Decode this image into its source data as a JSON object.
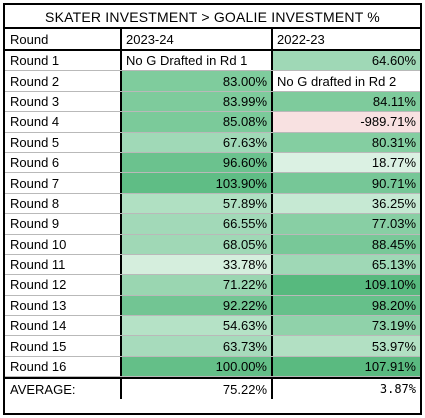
{
  "title": "SKATER INVESTMENT > GOALIE INVESTMENT %",
  "columns": [
    "Round",
    "2023-24",
    "2022-23"
  ],
  "rows": [
    {
      "round": "Round 1",
      "v2324": "No G Drafted in Rd 1",
      "c2324": "#ffffff",
      "v2223": "64.60%",
      "c2223": "#9fd8b6"
    },
    {
      "round": "Round 2",
      "v2324": "83.00%",
      "c2324": "#7fcc9d",
      "v2223": "No G drafted in Rd 2",
      "c2223": "#ffffff"
    },
    {
      "round": "Round 3",
      "v2324": "83.99%",
      "c2324": "#7ecb9c",
      "v2223": "84.11%",
      "c2223": "#7ecb9c"
    },
    {
      "round": "Round 4",
      "v2324": "85.08%",
      "c2324": "#7bca9a",
      "v2223": "-989.71%",
      "c2223": "#f8e1e1"
    },
    {
      "round": "Round 5",
      "v2324": "67.63%",
      "c2324": "#a0d9b7",
      "v2223": "80.31%",
      "c2223": "#84cea1"
    },
    {
      "round": "Round 6",
      "v2324": "96.60%",
      "c2324": "#6bc28e",
      "v2223": "18.77%",
      "c2223": "#dbf1e3"
    },
    {
      "round": "Round 7",
      "v2324": "103.90%",
      "c2324": "#5fbd85",
      "v2223": "90.71%",
      "c2223": "#76c797"
    },
    {
      "round": "Round 8",
      "v2324": "57.89%",
      "c2324": "#b0e0c2",
      "v2223": "36.25%",
      "c2223": "#c6e9d3"
    },
    {
      "round": "Round 9",
      "v2324": "66.55%",
      "c2324": "#a2d9b8",
      "v2223": "77.03%",
      "c2223": "#88cfa4"
    },
    {
      "round": "Round 10",
      "v2324": "68.05%",
      "c2324": "#a0d8b6",
      "v2223": "88.45%",
      "c2223": "#78c898"
    },
    {
      "round": "Round 11",
      "v2324": "33.78%",
      "c2324": "#d5eedd",
      "v2223": "65.13%",
      "c2223": "#9fd8b6"
    },
    {
      "round": "Round 12",
      "v2324": "71.22%",
      "c2324": "#9ad6b1",
      "v2223": "109.10%",
      "c2223": "#57b97e"
    },
    {
      "round": "Round 13",
      "v2324": "92.22%",
      "c2324": "#72c593",
      "v2223": "98.20%",
      "c2223": "#66c08a"
    },
    {
      "round": "Round 14",
      "v2324": "54.63%",
      "c2324": "#b5e2c6",
      "v2223": "73.19%",
      "c2223": "#90d2aa"
    },
    {
      "round": "Round 15",
      "v2324": "63.73%",
      "c2324": "#a7dbbc",
      "v2223": "53.97%",
      "c2223": "#b2e0c3"
    },
    {
      "round": "Round 16",
      "v2324": "100.00%",
      "c2324": "#64bf88",
      "v2223": "107.91%",
      "c2223": "#5aba80"
    }
  ],
  "average": {
    "label": "AVERAGE:",
    "v2324": "75.22%",
    "v2223": "3.87%"
  }
}
